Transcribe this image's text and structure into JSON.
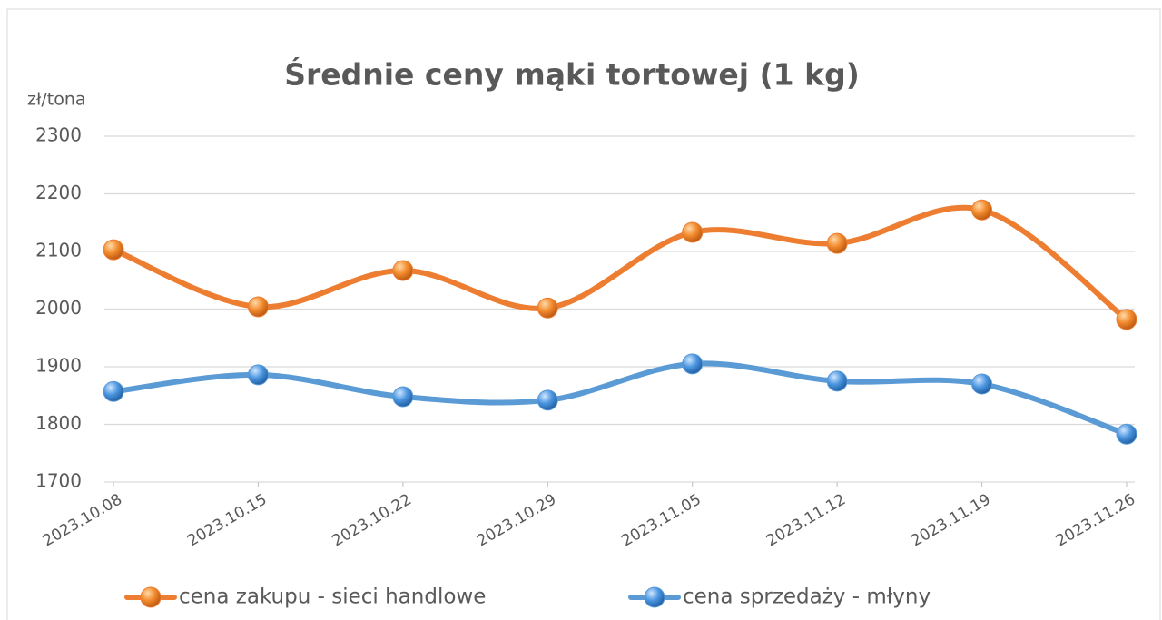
{
  "chart_data": {
    "type": "line",
    "title": "Średnie ceny mąki tortowej (1 kg)",
    "y_axis_label": "zł/tona",
    "categories": [
      "2023.10.08",
      "2023.10.15",
      "2023.10.22",
      "2023.10.29",
      "2023.11.05",
      "2023.11.12",
      "2023.11.19",
      "2023.11.26"
    ],
    "series": [
      {
        "name": "cena zakupu - sieci handlowe",
        "color": "#ed7d31",
        "values": [
          2103,
          2004,
          2067,
          2002,
          2133,
          2114,
          2172,
          1982
        ]
      },
      {
        "name": "cena sprzedaży - młyny",
        "color": "#5b9bd5",
        "values": [
          1857,
          1886,
          1848,
          1842,
          1905,
          1875,
          1870,
          1783
        ]
      }
    ],
    "ylim": [
      1700,
      2300
    ],
    "yticks": [
      1700,
      1800,
      1900,
      2000,
      2100,
      2200,
      2300
    ],
    "grid": true,
    "legend": "bottom",
    "smooth": true
  }
}
